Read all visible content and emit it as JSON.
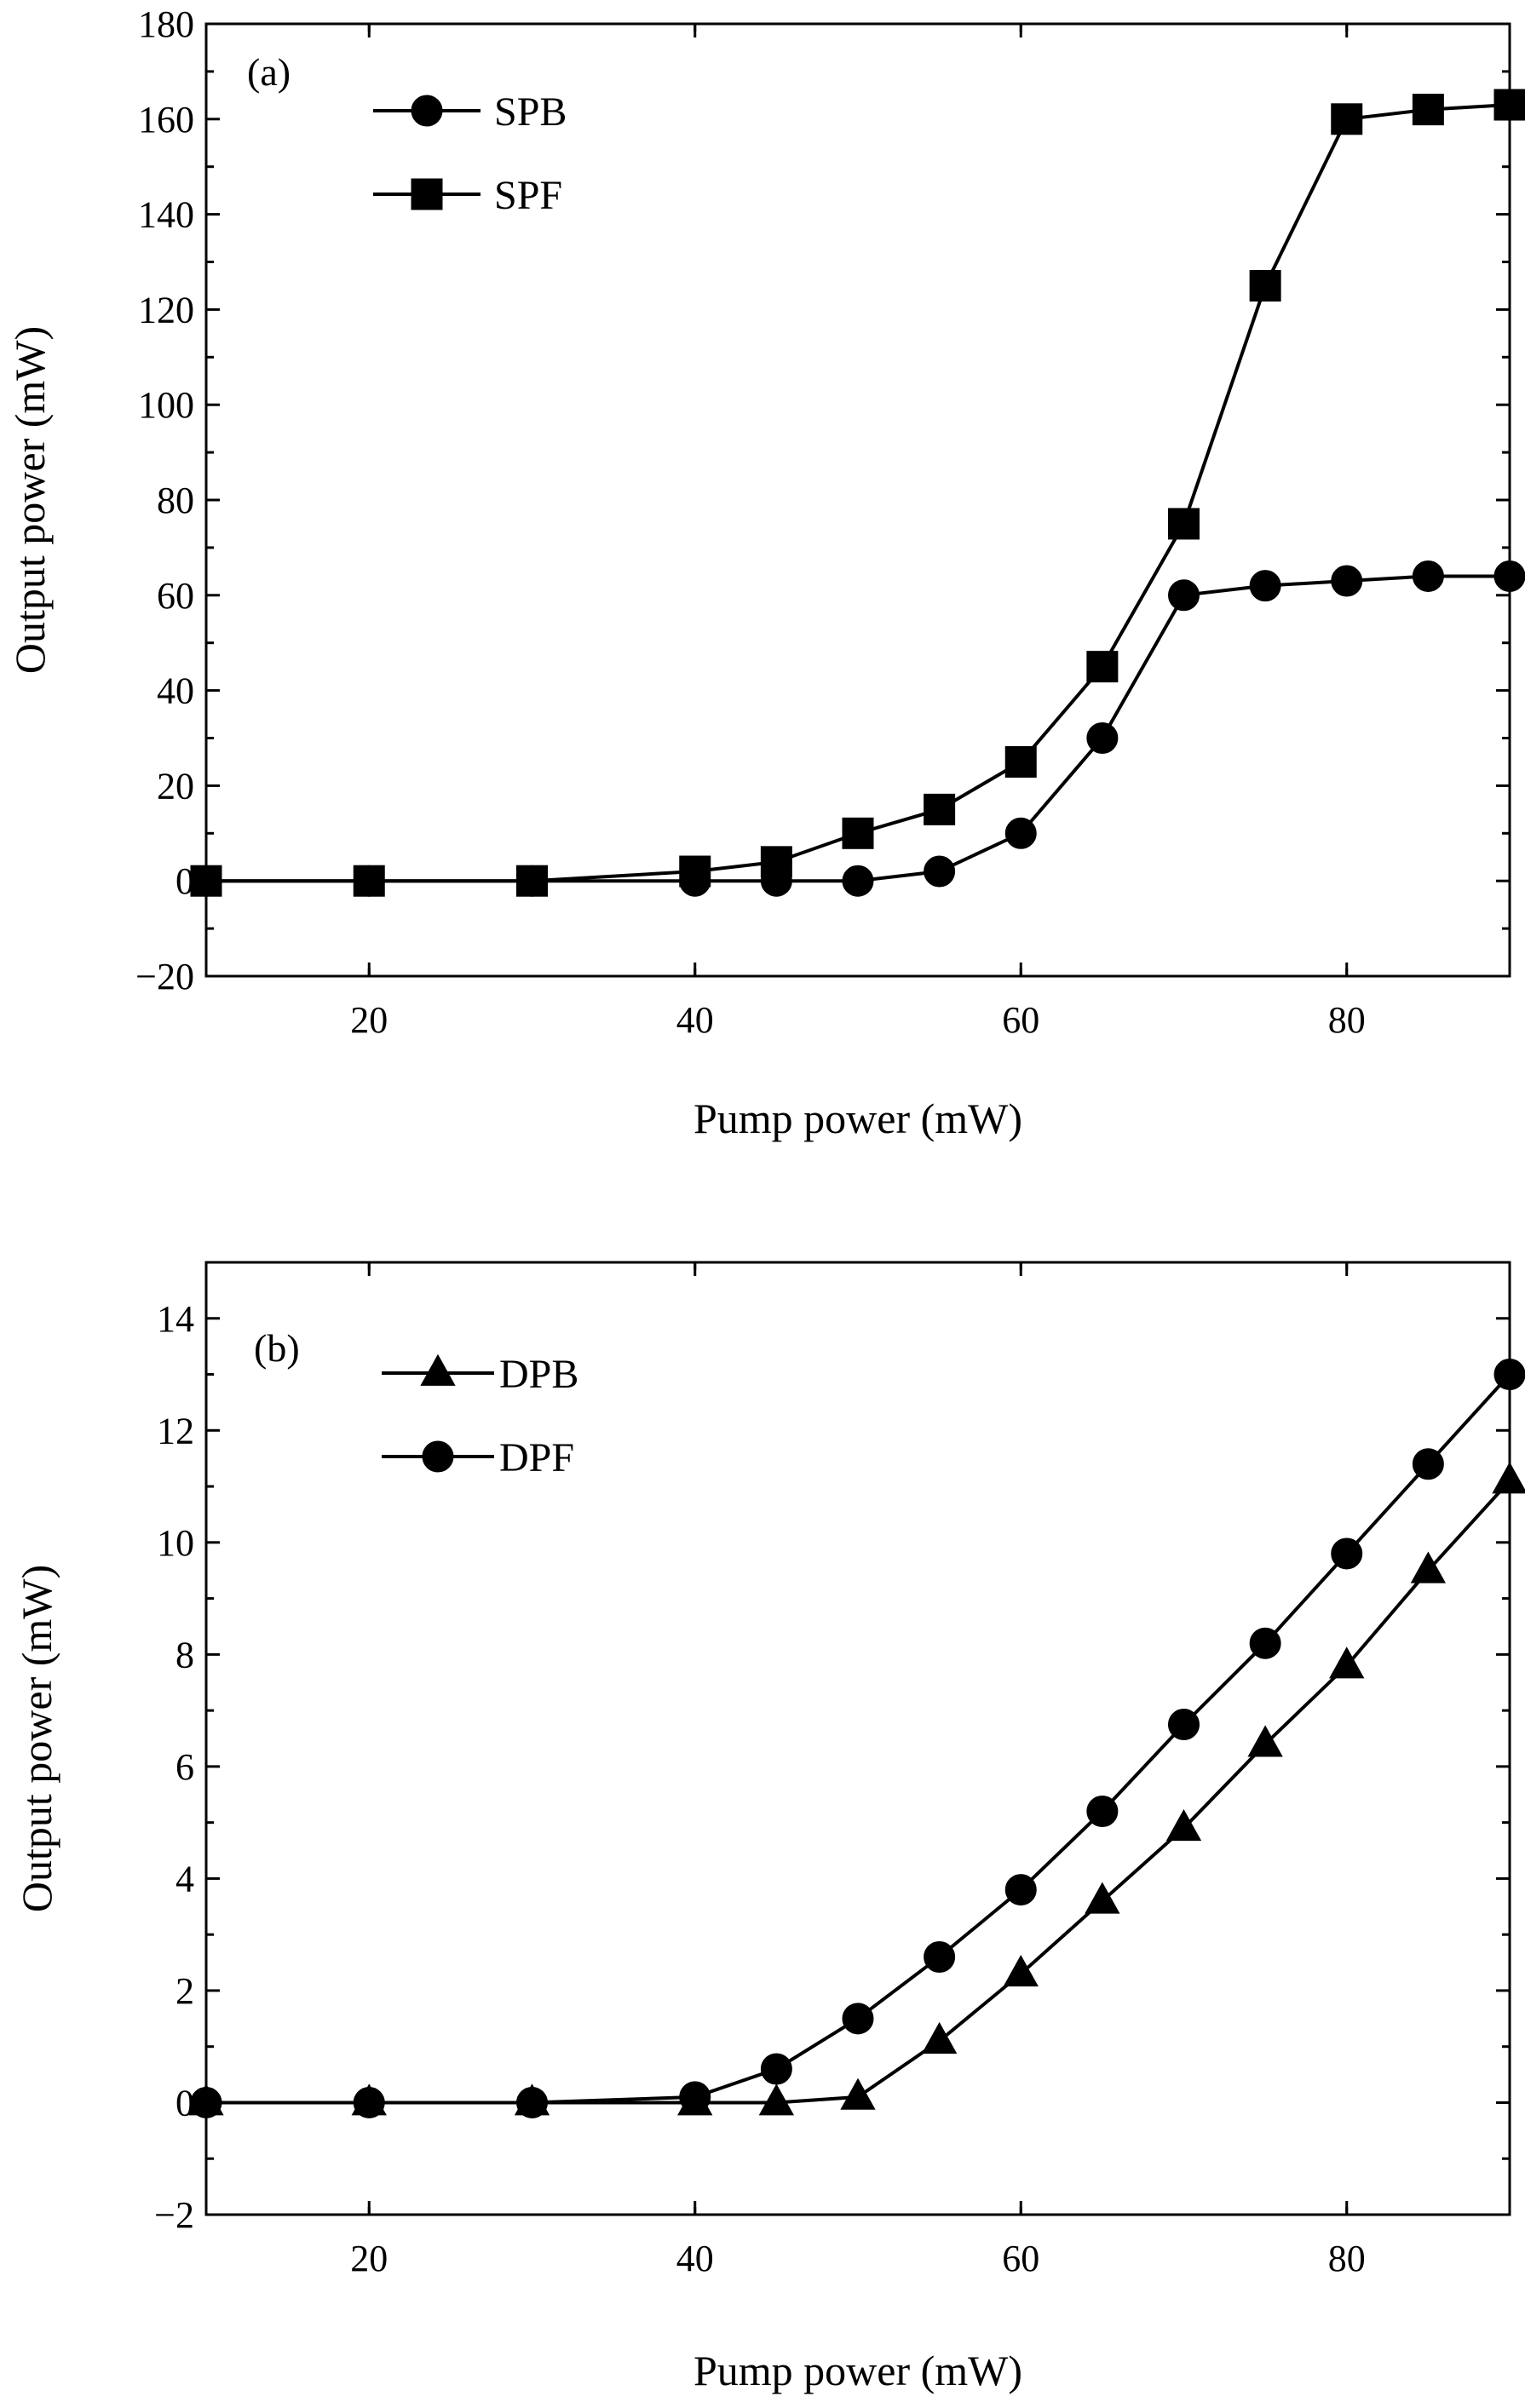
{
  "chart_data": [
    {
      "type": "line",
      "panel_label": "(a)",
      "xlabel": "Pump power (mW)",
      "ylabel": "Output power (mW)",
      "xlim": [
        10,
        90
      ],
      "ylim": [
        -20,
        180
      ],
      "xticks": [
        20,
        40,
        60,
        80
      ],
      "yticks": [
        -20,
        0,
        20,
        40,
        60,
        80,
        100,
        120,
        140,
        160,
        180
      ],
      "legend_position": "top-left",
      "grid": false,
      "series": [
        {
          "name": "SPB",
          "marker": "circle",
          "x": [
            10,
            20,
            30,
            40,
            45,
            50,
            55,
            60,
            65,
            70,
            75,
            80,
            85,
            90
          ],
          "y": [
            0,
            0,
            0,
            0,
            0,
            0,
            2,
            10,
            30,
            60,
            62,
            63,
            64,
            64
          ]
        },
        {
          "name": "SPF",
          "marker": "square",
          "x": [
            10,
            20,
            30,
            40,
            45,
            50,
            55,
            60,
            65,
            70,
            75,
            80,
            85,
            90
          ],
          "y": [
            0,
            0,
            0,
            2,
            4,
            10,
            15,
            25,
            45,
            75,
            125,
            160,
            162,
            163
          ]
        }
      ]
    },
    {
      "type": "line",
      "panel_label": "(b)",
      "xlabel": "Pump power (mW)",
      "ylabel": "Output power (mW)",
      "xlim": [
        10,
        90
      ],
      "ylim": [
        -2,
        15
      ],
      "xticks": [
        20,
        40,
        60,
        80
      ],
      "yticks": [
        -2,
        0,
        2,
        4,
        6,
        8,
        10,
        12,
        14
      ],
      "legend_position": "top-left",
      "grid": false,
      "series": [
        {
          "name": "DPB",
          "marker": "triangle",
          "x": [
            10,
            20,
            30,
            40,
            45,
            50,
            55,
            60,
            65,
            70,
            75,
            80,
            85,
            90
          ],
          "y": [
            0,
            0,
            0,
            0,
            0,
            0.1,
            1.1,
            2.3,
            3.6,
            4.9,
            6.4,
            7.8,
            9.5,
            11.1
          ]
        },
        {
          "name": "DPF",
          "marker": "circle",
          "x": [
            10,
            20,
            30,
            40,
            45,
            50,
            55,
            60,
            65,
            70,
            75,
            80,
            85,
            90
          ],
          "y": [
            0,
            0,
            0,
            0.1,
            0.6,
            1.5,
            2.6,
            3.8,
            5.2,
            6.75,
            8.2,
            9.8,
            11.4,
            13
          ]
        }
      ]
    }
  ]
}
